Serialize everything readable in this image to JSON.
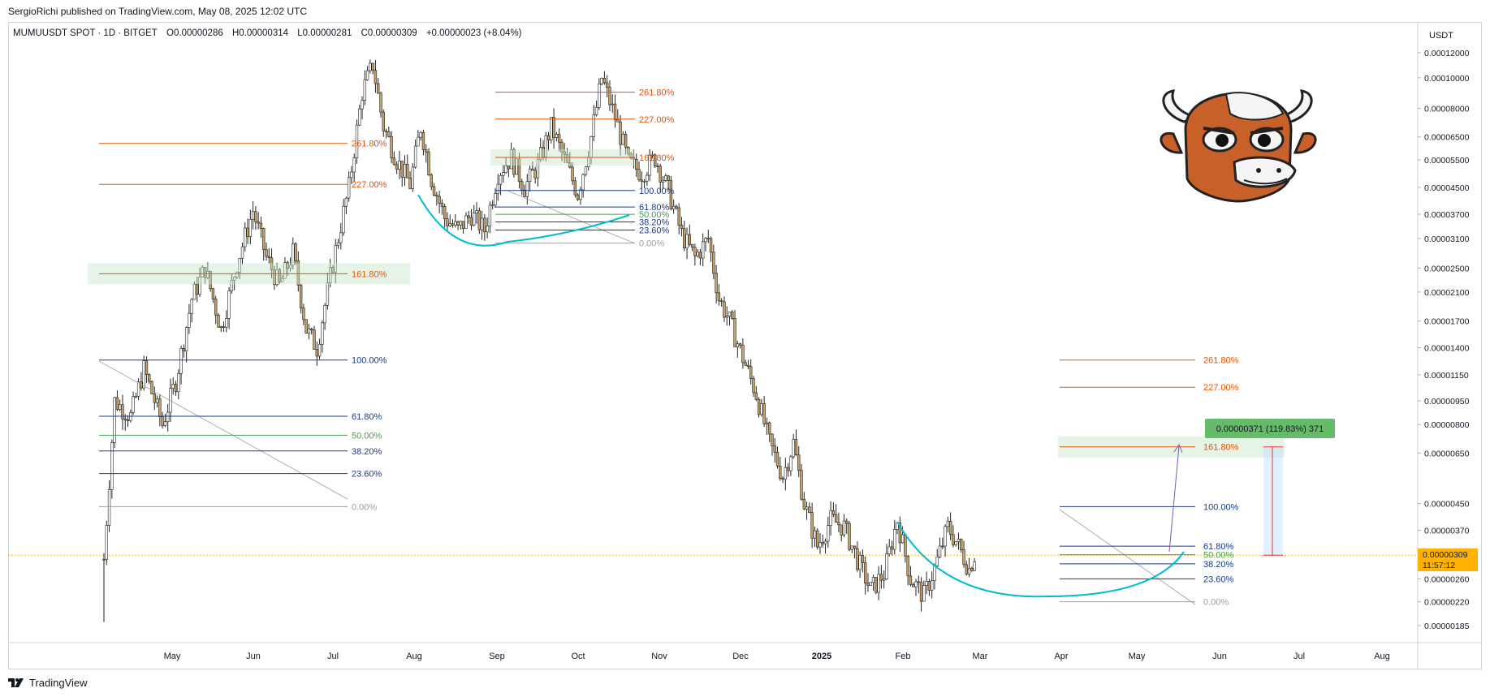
{
  "header": {
    "published": "SergioRichi published on TradingView.com, May 08, 2025 12:02 UTC"
  },
  "legend": {
    "symbol": "MUMUUSDT SPOT · 1D · BITGET",
    "open": "O0.00000286",
    "high": "H0.00000314",
    "low": "L0.00000281",
    "close": "C0.00000309",
    "change": "+0.00000023 (+8.04%)"
  },
  "price_axis": {
    "unit": "USDT",
    "current_price": "0.00000309",
    "countdown": "11:57:12"
  },
  "brand": {
    "name": "TradingView"
  },
  "colors": {
    "fib_extension": "#e65100",
    "fib_level": "#1a3a8f",
    "fib_mid": "#43a047",
    "fib_base": "#9e9e9e",
    "bowl": "#00bcd4",
    "candle_up": "#ffffff",
    "candle_down": "#c8a165",
    "candle_wick": "#222222",
    "current_price": "#ffb300",
    "measure_label": "#66bb6a"
  },
  "chart_data": {
    "type": "candlestick",
    "title": "",
    "symbol": "MUMUUSDT",
    "timeframe": "1D",
    "exchange": "BITGET",
    "x_ticks": [
      "May",
      "Jun",
      "Jul",
      "Aug",
      "Sep",
      "Oct",
      "Nov",
      "Dec",
      "2025",
      "Feb",
      "Mar",
      "Apr",
      "May",
      "Jun",
      "Jul",
      "Aug"
    ],
    "y_ticks": [
      "0.00012000",
      "0.00010000",
      "0.00008000",
      "0.00006500",
      "0.00005500",
      "0.00004500",
      "0.00003700",
      "0.00003100",
      "0.00002500",
      "0.00002100",
      "0.00001700",
      "0.00001400",
      "0.00001150",
      "0.00000950",
      "0.00000800",
      "0.00000650",
      "0.00000450",
      "0.00000370",
      "0.00000260",
      "0.00000220",
      "0.00000185"
    ],
    "log_scale": true,
    "last_close": 3.09e-06,
    "price_path": [
      [
        0,
        3e-06
      ],
      [
        4,
        9.5e-06
      ],
      [
        10,
        8.5e-06
      ],
      [
        15,
        1.2e-05
      ],
      [
        22,
        8e-06
      ],
      [
        27,
        1.1e-05
      ],
      [
        33,
        2e-05
      ],
      [
        38,
        2.5e-05
      ],
      [
        44,
        1.6e-05
      ],
      [
        50,
        2.6e-05
      ],
      [
        56,
        3.8e-05
      ],
      [
        61,
        2.7e-05
      ],
      [
        66,
        2.2e-05
      ],
      [
        71,
        2.8e-05
      ],
      [
        76,
        1.6e-05
      ],
      [
        80,
        1.4e-05
      ],
      [
        86,
        2.6e-05
      ],
      [
        92,
        4.5e-05
      ],
      [
        97,
        9e-05
      ],
      [
        101,
        0.00011
      ],
      [
        105,
        7e-05
      ],
      [
        110,
        5.5e-05
      ],
      [
        115,
        4.6e-05
      ],
      [
        119,
        7e-05
      ],
      [
        123,
        4.8e-05
      ],
      [
        128,
        3.6e-05
      ],
      [
        133,
        3.3e-05
      ],
      [
        138,
        3.7e-05
      ],
      [
        143,
        3.3e-05
      ],
      [
        148,
        5e-05
      ],
      [
        153,
        5.6e-05
      ],
      [
        158,
        4.5e-05
      ],
      [
        163,
        5.3e-05
      ],
      [
        168,
        7e-05
      ],
      [
        173,
        5.5e-05
      ],
      [
        178,
        4.3e-05
      ],
      [
        183,
        6.5e-05
      ],
      [
        187,
        0.0001
      ],
      [
        192,
        7.5e-05
      ],
      [
        197,
        5.4e-05
      ],
      [
        202,
        5e-05
      ],
      [
        207,
        5.6e-05
      ],
      [
        212,
        4.4e-05
      ],
      [
        217,
        3.2e-05
      ],
      [
        222,
        2.7e-05
      ],
      [
        227,
        3.1e-05
      ],
      [
        231,
        2e-05
      ],
      [
        235,
        1.7e-05
      ],
      [
        240,
        1.3e-05
      ],
      [
        245,
        1e-05
      ],
      [
        250,
        7e-06
      ],
      [
        255,
        5.5e-06
      ],
      [
        259,
        7e-06
      ],
      [
        263,
        4.5e-06
      ],
      [
        268,
        3.3e-06
      ],
      [
        273,
        4e-06
      ],
      [
        278,
        3.8e-06
      ],
      [
        283,
        3e-06
      ],
      [
        288,
        2.4e-06
      ],
      [
        293,
        2.7e-06
      ],
      [
        298,
        4e-06
      ],
      [
        303,
        2.6e-06
      ],
      [
        308,
        2.3e-06
      ],
      [
        312,
        2.8e-06
      ],
      [
        317,
        3.8e-06
      ],
      [
        321,
        3.3e-06
      ],
      [
        325,
        2.8e-06
      ],
      [
        327,
        3.1e-06
      ]
    ],
    "fib_sets": [
      {
        "name": "",
        "levels": [
          {
            "label": "261.80%",
            "price": 6.2e-05,
            "kind": "ext"
          },
          {
            "label": "227.00%",
            "price": 4.6e-05,
            "kind": "ext"
          },
          {
            "label": "161.80%",
            "price": 2.4e-05,
            "kind": "ext"
          },
          {
            "label": "100.00%",
            "price": 1.28e-05,
            "kind": "lvl"
          },
          {
            "label": "61.80%",
            "price": 8.5e-06,
            "kind": "lvl"
          },
          {
            "label": "50.00%",
            "price": 7.4e-06,
            "kind": "mid"
          },
          {
            "label": "38.20%",
            "price": 6.6e-06,
            "kind": "lvl"
          },
          {
            "label": "23.60%",
            "price": 5.6e-06,
            "kind": "lvl"
          },
          {
            "label": "0.00%",
            "price": 4.4e-06,
            "kind": "base"
          }
        ]
      },
      {
        "name": "",
        "levels": [
          {
            "label": "261.80%",
            "price": 9e-05,
            "kind": "ext"
          },
          {
            "label": "227.00%",
            "price": 7.4e-05,
            "kind": "ext"
          },
          {
            "label": "161.80%",
            "price": 5.6e-05,
            "kind": "ext"
          },
          {
            "label": "100.00%",
            "price": 4.4e-05,
            "kind": "lvl"
          },
          {
            "label": "61.80%",
            "price": 3.9e-05,
            "kind": "lvl"
          },
          {
            "label": "50.00%",
            "price": 3.7e-05,
            "kind": "mid"
          },
          {
            "label": "38.20%",
            "price": 3.5e-05,
            "kind": "lvl"
          },
          {
            "label": "23.60%",
            "price": 3.3e-05,
            "kind": "lvl"
          },
          {
            "label": "0.00%",
            "price": 3e-05,
            "kind": "base"
          }
        ]
      },
      {
        "name": "",
        "levels": [
          {
            "label": "261.80%",
            "price": 1.28e-05,
            "kind": "ext"
          },
          {
            "label": "227.00%",
            "price": 1.05e-05,
            "kind": "ext"
          },
          {
            "label": "161.80%",
            "price": 6.8e-06,
            "kind": "ext"
          },
          {
            "label": "100.00%",
            "price": 4.4e-06,
            "kind": "lvl"
          },
          {
            "label": "61.80%",
            "price": 3.3e-06,
            "kind": "lvl"
          },
          {
            "label": "50.00%",
            "price": 3.1e-06,
            "kind": "mid"
          },
          {
            "label": "38.20%",
            "price": 2.9e-06,
            "kind": "lvl"
          },
          {
            "label": "23.60%",
            "price": 2.6e-06,
            "kind": "lvl"
          },
          {
            "label": "0.00%",
            "price": 2.2e-06,
            "kind": "base"
          }
        ]
      }
    ],
    "measurement": {
      "label": "0.00000371 (119.83%) 371",
      "from_price": 3.09e-06,
      "to_price": 6.8e-06
    }
  }
}
